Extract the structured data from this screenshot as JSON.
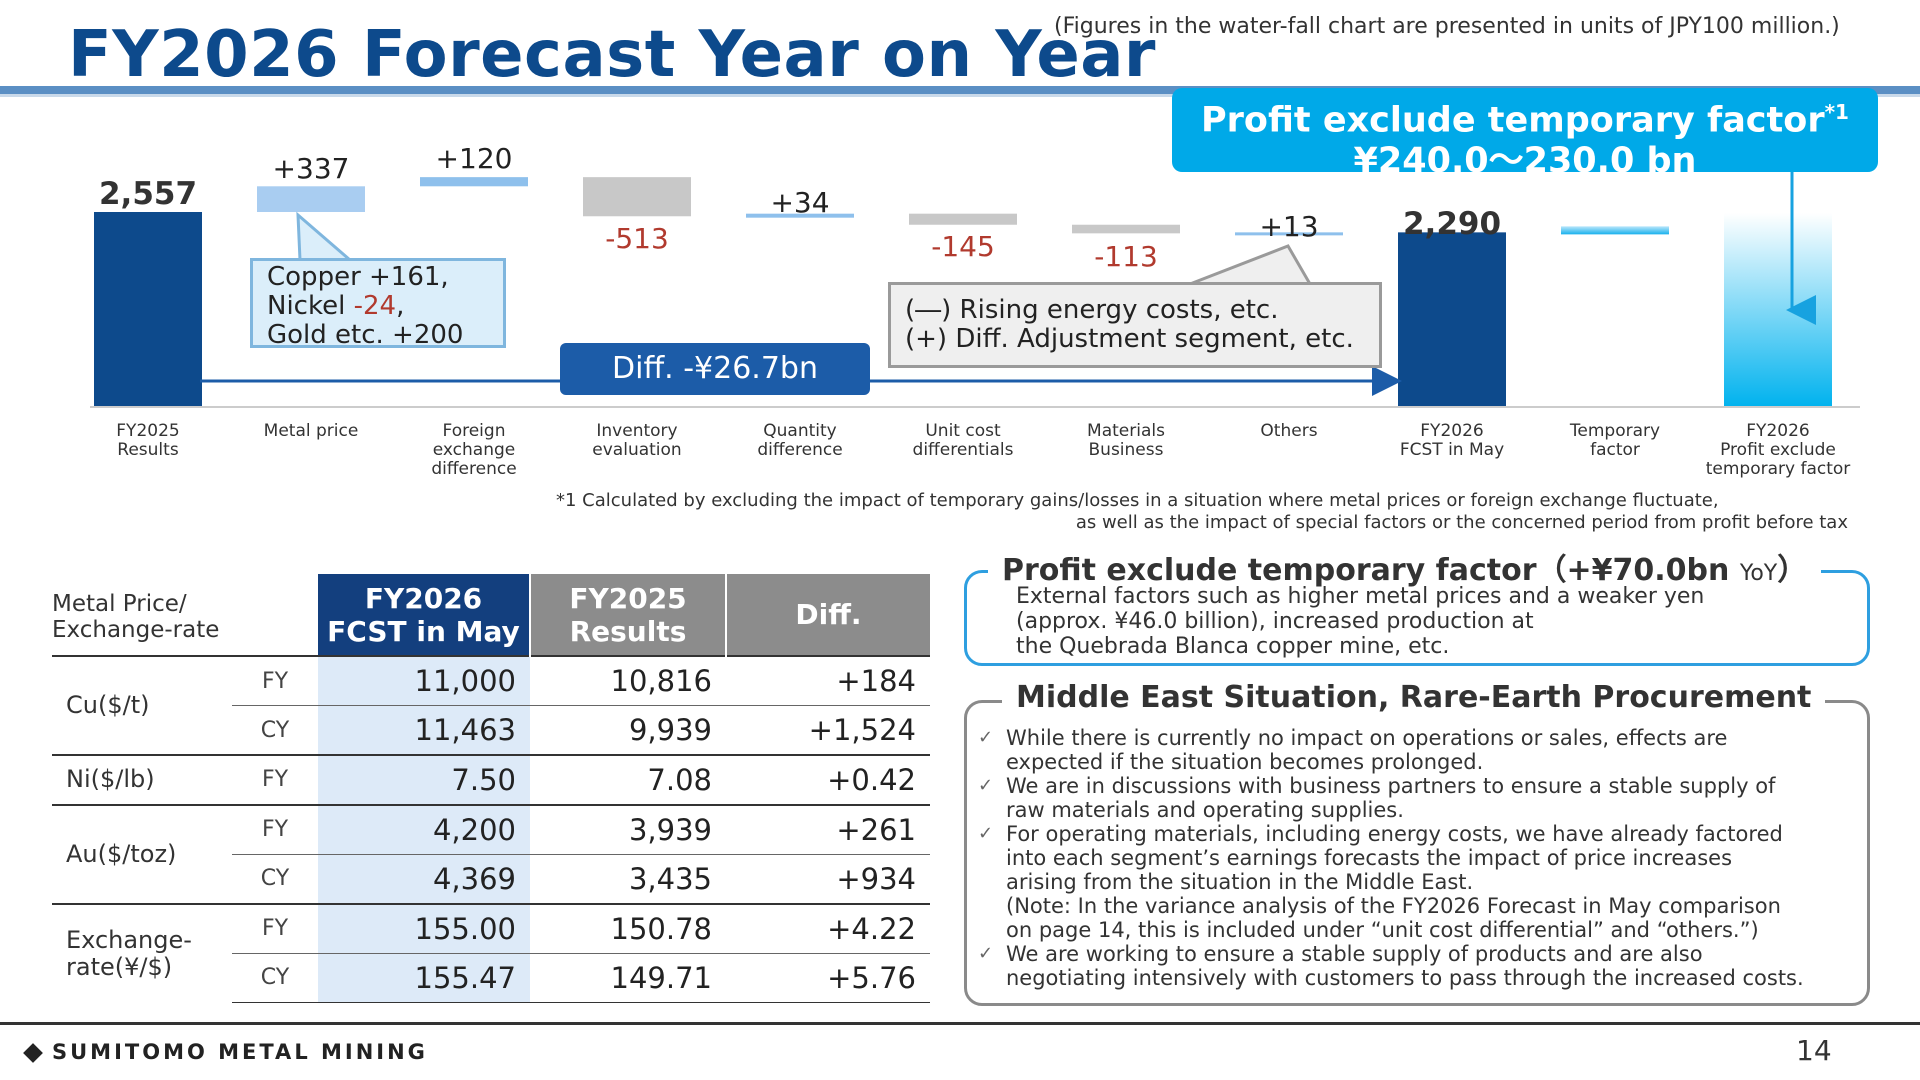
{
  "title": "FY2026 Forecast Year on Year",
  "units_note": "(Figures in the water-fall chart are presented in units of JPY100 million.)",
  "profit_callout": {
    "line1": "Profit exclude temporary factor",
    "footnote_mark": "*1",
    "line2": "¥240.0～230.0 bn"
  },
  "chart_data": {
    "type": "bar",
    "subtype": "waterfall",
    "categories": [
      "FY2025\nResults",
      "Metal price",
      "Foreign\nexchange\ndifference",
      "Inventory\nevaluation",
      "Quantity\ndifference",
      "Unit cost\ndifferentials",
      "Materials\nBusiness",
      "Others",
      "FY2026\nFCST in May",
      "Temporary\nfactor",
      "FY2026\nProfit exclude\ntemporary factor"
    ],
    "values": [
      2557,
      337,
      120,
      -513,
      34,
      -145,
      -113,
      13,
      2290,
      null,
      null
    ],
    "labels": [
      "2,557",
      "+337",
      "+120",
      "-513",
      "+34",
      "-145",
      "-113",
      "+13",
      "2,290",
      "",
      ""
    ],
    "colors": {
      "total": "#0d4a8c",
      "metal": "#a9cdf1",
      "increase": "#8ec0ec",
      "decrease": "#c8c8c8",
      "negative_text": "#b13a2e",
      "profit_gradient_top": "#ffffff",
      "profit_gradient_bottom": "#00b2ee"
    },
    "diff_label": "Diff.  -¥26.7bn"
  },
  "bubbles": {
    "metal": [
      "Copper +161,",
      "Nickel ",
      "-24",
      ",",
      "Gold etc. +200"
    ],
    "other_line1": "(―) Rising energy costs, etc.",
    "other_line2": "(+) Diff. Adjustment segment, etc."
  },
  "footnote": {
    "line1": "*1  Calculated by excluding the impact of temporary gains/losses in a situation where metal prices or foreign exchange fluctuate,",
    "line2": "as well as the impact of special factors or the concerned period from profit before tax"
  },
  "table": {
    "header_label": "Metal Price/\nExchange-rate",
    "col1": "FY2026\nFCST in May",
    "col2": "FY2025\nResults",
    "col3": "Diff.",
    "rows": [
      {
        "group": "Cu($/t)",
        "period": "FY",
        "fcst": "11,000",
        "results": "10,816",
        "diff": "+184"
      },
      {
        "group": "",
        "period": "CY",
        "fcst": "11,463",
        "results": "9,939",
        "diff": "+1,524"
      },
      {
        "group": "Ni($/lb)",
        "period": "FY",
        "fcst": "7.50",
        "results": "7.08",
        "diff": "+0.42"
      },
      {
        "group": "Au($/toz)",
        "period": "FY",
        "fcst": "4,200",
        "results": "3,939",
        "diff": "+261"
      },
      {
        "group": "",
        "period": "CY",
        "fcst": "4,369",
        "results": "3,435",
        "diff": "+934"
      },
      {
        "group": "Exchange-\nrate(¥/$)",
        "period": "FY",
        "fcst": "155.00",
        "results": "150.78",
        "diff": "+4.22"
      },
      {
        "group": "",
        "period": "CY",
        "fcst": "155.47",
        "results": "149.71",
        "diff": "+5.76"
      }
    ]
  },
  "box1": {
    "title": "Profit exclude temporary factor（+¥70.0bn ",
    "title_small": "YoY",
    "title_end": "）",
    "text": [
      "External factors such as higher metal prices and a weaker yen",
      "(approx. ¥46.0 billion), increased production at",
      "the Quebrada Blanca copper mine, etc."
    ]
  },
  "box2": {
    "title": "Middle East Situation, Rare-Earth Procurement",
    "items": [
      [
        "While there is currently no impact on operations or sales, effects are",
        "expected if the situation becomes prolonged."
      ],
      [
        "We are in discussions with business partners to ensure a stable supply of",
        "raw materials and operating supplies."
      ],
      [
        "For operating materials, including energy costs, we have already factored",
        "into each segment’s earnings forecasts the impact of price increases",
        "arising from the situation in the Middle East.",
        "(Note: In the variance analysis of the FY2026 Forecast in May comparison",
        "on page 14, this is included under “unit cost differential” and “others.”)"
      ],
      [
        "We are working to ensure a stable supply of products and are also",
        "negotiating intensively with customers to pass through the increased costs."
      ]
    ]
  },
  "logo": "SUMITOMO METAL MINING",
  "page_number": "14"
}
